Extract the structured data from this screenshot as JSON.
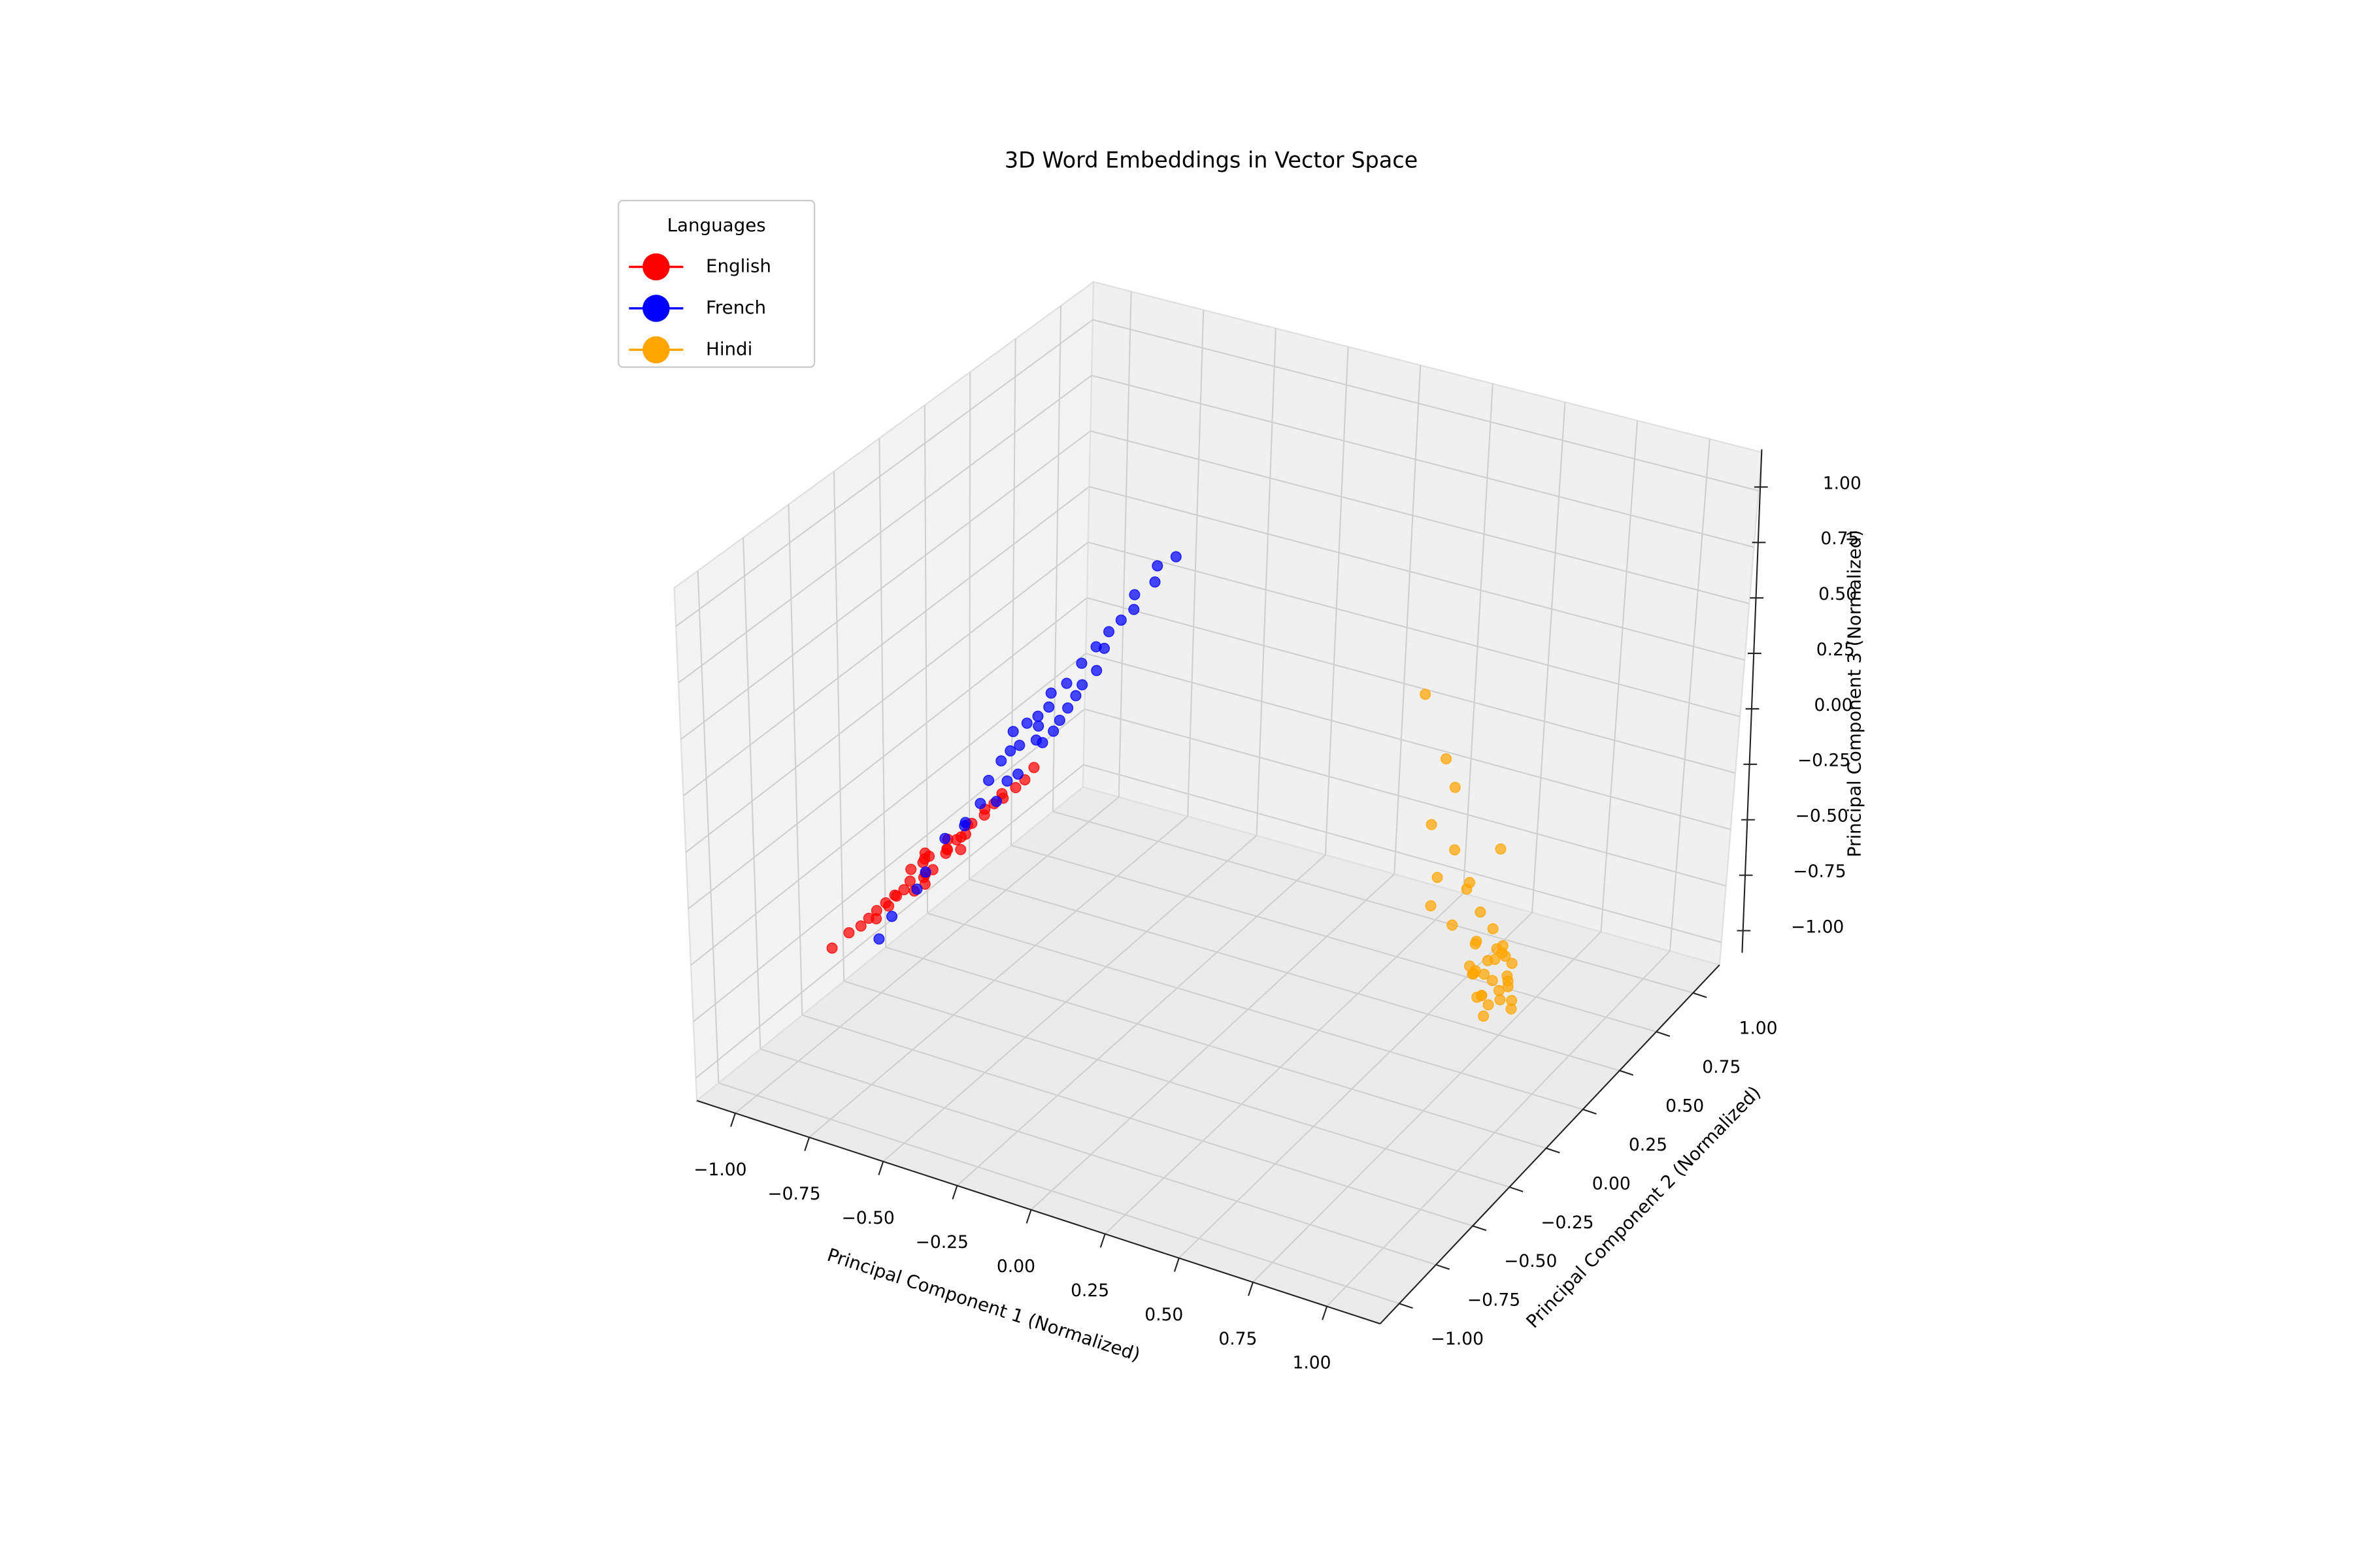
{
  "chart_data": {
    "type": "scatter3d",
    "title": "3D Word Embeddings in Vector Space",
    "xlabel": "Principal Component 1 (Normalized)",
    "ylabel": "Principal Component 2 (Normalized)",
    "zlabel": "Principal Component 3 (Normalized)",
    "legend_title": "Languages",
    "legend_loc": "upper left",
    "grid": true,
    "xlim": [
      -1.13,
      1.18
    ],
    "ylim": [
      -1.13,
      1.18
    ],
    "zlim": [
      -1.1,
      1.17
    ],
    "xticks": [
      {
        "value": -1,
        "label": "−1.00"
      },
      {
        "value": -0.75,
        "label": "−0.75"
      },
      {
        "value": -0.5,
        "label": "−0.50"
      },
      {
        "value": -0.25,
        "label": "−0.25"
      },
      {
        "value": 0,
        "label": "0.00"
      },
      {
        "value": 0.25,
        "label": "0.25"
      },
      {
        "value": 0.5,
        "label": "0.50"
      },
      {
        "value": 0.75,
        "label": "0.75"
      },
      {
        "value": 1,
        "label": "1.00"
      }
    ],
    "yticks": [
      {
        "value": -1,
        "label": "−1.00"
      },
      {
        "value": -0.75,
        "label": "−0.75"
      },
      {
        "value": -0.5,
        "label": "−0.50"
      },
      {
        "value": -0.25,
        "label": "−0.25"
      },
      {
        "value": 0,
        "label": "0.00"
      },
      {
        "value": 0.25,
        "label": "0.25"
      },
      {
        "value": 0.5,
        "label": "0.50"
      },
      {
        "value": 0.75,
        "label": "0.75"
      },
      {
        "value": 1,
        "label": "1.00"
      }
    ],
    "zticks": [
      {
        "value": -1,
        "label": "−1.00"
      },
      {
        "value": -0.75,
        "label": "−0.75"
      },
      {
        "value": -0.5,
        "label": "−0.50"
      },
      {
        "value": -0.25,
        "label": "−0.25"
      },
      {
        "value": 0,
        "label": "0.00"
      },
      {
        "value": 0.25,
        "label": "0.25"
      },
      {
        "value": 0.5,
        "label": "0.50"
      },
      {
        "value": 0.75,
        "label": "0.75"
      },
      {
        "value": 1,
        "label": "1.00"
      }
    ],
    "series": [
      {
        "name": "English",
        "color": "#ff0000",
        "x": [
          -0.92,
          -0.85,
          -0.98,
          -0.78,
          -0.88,
          -0.95,
          -0.81,
          -0.9,
          -0.75,
          -1.02,
          -0.86,
          -0.93,
          -0.8,
          -0.7,
          -0.97,
          -0.84,
          -0.89,
          -0.76,
          -0.91,
          -0.83,
          -1.05,
          -0.87,
          -0.79,
          -0.94,
          -0.72,
          -0.88,
          -0.82,
          -0.99,
          -0.77,
          -0.9,
          -0.85,
          -0.68,
          -0.96,
          -0.81,
          -0.87,
          -0.74,
          -0.93,
          -0.8,
          -0.89,
          -0.84
        ],
        "y": [
          -0.2,
          -0.1,
          -0.35,
          0.0,
          -0.25,
          -0.3,
          -0.05,
          -0.15,
          0.05,
          -0.4,
          -0.22,
          -0.28,
          -0.08,
          0.1,
          -0.32,
          -0.12,
          -0.18,
          0.02,
          -0.26,
          -0.14,
          -0.45,
          -0.2,
          -0.06,
          -0.3,
          0.08,
          -0.16,
          -0.1,
          -0.38,
          -0.02,
          -0.24,
          -0.19,
          0.12,
          -0.34,
          -0.09,
          -0.21,
          0.04,
          -0.27,
          -0.11,
          -0.17,
          -0.13
        ],
        "z": [
          -0.55,
          -0.45,
          -0.7,
          -0.35,
          -0.6,
          -0.65,
          -0.4,
          -0.5,
          -0.3,
          -0.75,
          -0.58,
          -0.62,
          -0.42,
          -0.25,
          -0.68,
          -0.48,
          -0.52,
          -0.33,
          -0.6,
          -0.46,
          -0.8,
          -0.55,
          -0.38,
          -0.66,
          -0.28,
          -0.5,
          -0.44,
          -0.72,
          -0.36,
          -0.57,
          -0.53,
          -0.2,
          -0.7,
          -0.43,
          -0.56,
          -0.31,
          -0.63,
          -0.47,
          -0.51,
          -0.49
        ]
      },
      {
        "name": "French",
        "color": "#0000ff",
        "x": [
          -0.94,
          -0.9,
          -0.9,
          -0.84,
          -0.86,
          -0.78,
          -0.83,
          -0.76,
          -0.79,
          -0.74,
          -0.77,
          -0.72,
          -0.73,
          -0.7,
          -0.69,
          -0.74,
          -0.68,
          -0.71,
          -0.66,
          -0.69,
          -0.65,
          -0.67,
          -0.64,
          -0.68,
          -0.63,
          -0.65,
          -0.62,
          -0.64,
          -0.6,
          -0.62,
          -0.58,
          -0.6,
          -0.57,
          -0.55,
          -0.56,
          -0.52,
          -0.53,
          -0.49,
          -0.75,
          -0.7
        ],
        "y": [
          -0.36,
          -0.35,
          -0.2,
          -0.25,
          -0.1,
          -0.12,
          -0.03,
          -0.06,
          0.04,
          0.0,
          0.08,
          0.03,
          0.12,
          0.06,
          0.15,
          0.1,
          0.17,
          0.13,
          0.2,
          0.16,
          0.22,
          0.19,
          0.25,
          0.22,
          0.28,
          0.26,
          0.3,
          0.33,
          0.35,
          0.38,
          0.36,
          0.42,
          0.44,
          0.48,
          0.5,
          0.55,
          0.58,
          0.62,
          0.1,
          0.18
        ],
        "z": [
          -0.77,
          -0.66,
          -0.63,
          -0.5,
          -0.45,
          -0.35,
          -0.41,
          -0.28,
          -0.25,
          -0.3,
          -0.18,
          -0.22,
          -0.12,
          -0.2,
          -0.1,
          -0.05,
          -0.12,
          -0.02,
          -0.08,
          0.0,
          -0.04,
          0.03,
          0.0,
          0.07,
          0.04,
          0.1,
          0.08,
          0.15,
          0.12,
          0.2,
          0.22,
          0.25,
          0.3,
          0.33,
          0.38,
          0.42,
          0.47,
          0.5,
          -0.14,
          -0.06
        ]
      },
      {
        "name": "Hindi",
        "color": "#ffa500",
        "x": [
          0.72,
          0.68,
          0.75,
          0.7,
          0.78,
          0.66,
          0.73,
          0.69,
          0.76,
          0.71,
          0.74,
          0.67,
          0.79,
          0.7,
          0.73,
          0.77,
          0.65,
          0.72,
          0.75,
          0.69,
          0.8,
          0.71,
          0.74,
          0.68,
          0.76,
          0.7,
          0.7,
          0.65,
          0.74,
          0.6,
          0.68,
          0.72,
          0.63,
          0.66,
          0.7,
          0.75,
          0.62,
          0.67,
          0.64,
          0.69
        ],
        "y": [
          0.5,
          0.45,
          0.55,
          0.42,
          0.52,
          0.48,
          0.58,
          0.4,
          0.47,
          0.53,
          0.44,
          0.56,
          0.5,
          0.6,
          0.38,
          0.46,
          0.51,
          0.43,
          0.57,
          0.49,
          0.45,
          0.54,
          0.41,
          0.52,
          0.48,
          0.62,
          0.42,
          0.35,
          0.45,
          0.3,
          0.38,
          0.4,
          0.28,
          0.33,
          0.36,
          0.46,
          0.25,
          0.3,
          0.15,
          0.2
        ],
        "z": [
          -0.87,
          -0.82,
          -0.92,
          -0.78,
          -0.95,
          -0.85,
          -0.9,
          -0.75,
          -0.88,
          -0.8,
          -0.93,
          -0.84,
          -0.97,
          -0.79,
          -0.86,
          -0.91,
          -0.74,
          -0.89,
          -0.83,
          -0.94,
          -0.81,
          -0.76,
          -0.96,
          -0.87,
          -0.72,
          -0.85,
          -0.65,
          -0.55,
          -0.6,
          -0.45,
          -0.4,
          -0.5,
          -0.3,
          -0.2,
          -0.35,
          -0.25,
          -0.05,
          0.1,
          0.6,
          0.3
        ]
      }
    ]
  }
}
